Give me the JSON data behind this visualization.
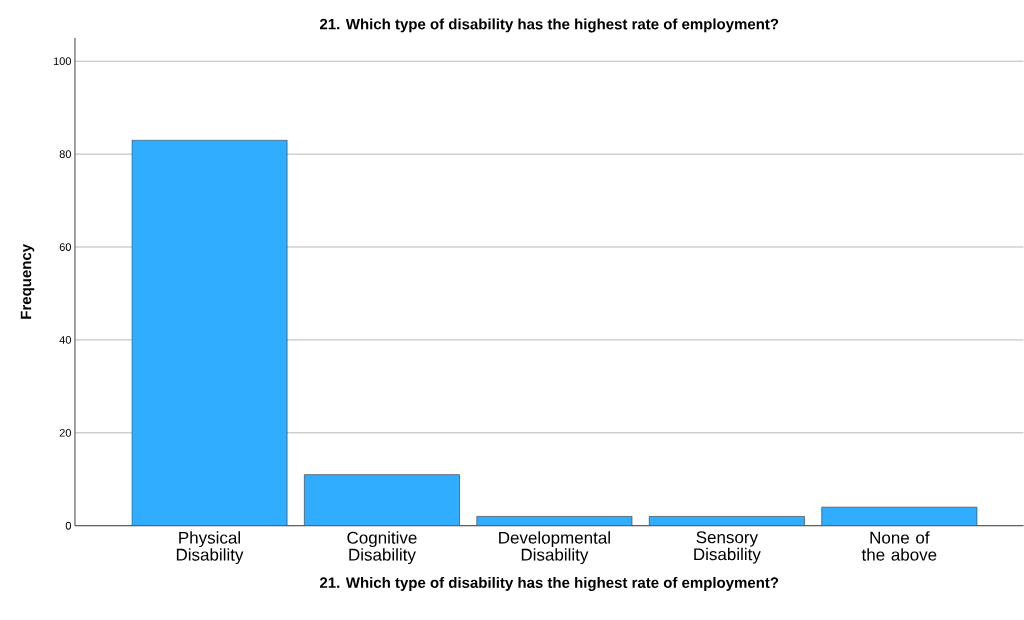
{
  "chart_data": {
    "type": "bar",
    "title": "21. Which type of disability has the highest rate of employment?",
    "xlabel": "21. Which type of disability has the highest rate of employment?",
    "ylabel": "Frequency",
    "categories": [
      "Physical Disability",
      "Cognitive Disability",
      "Developmental Disability",
      "Sensory Disability",
      "None of the above"
    ],
    "values": [
      83,
      11,
      2,
      2,
      4
    ],
    "color": "#30adff",
    "ylim": [
      0,
      105
    ],
    "yticks": [
      0,
      20,
      40,
      60,
      80,
      100
    ],
    "grid": "y"
  }
}
